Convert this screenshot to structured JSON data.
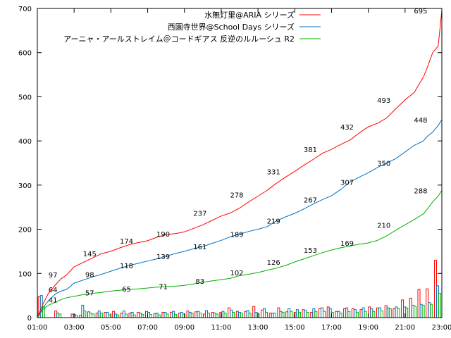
{
  "chart_data": {
    "type": "line",
    "x_axis": {
      "min": 1,
      "max": 23,
      "ticks": [
        {
          "value": 1,
          "label": "01:00"
        },
        {
          "value": 3,
          "label": "03:00"
        },
        {
          "value": 5,
          "label": "05:00"
        },
        {
          "value": 7,
          "label": "07:00"
        },
        {
          "value": 9,
          "label": "09:00"
        },
        {
          "value": 11,
          "label": "11:00"
        },
        {
          "value": 13,
          "label": "13:00"
        },
        {
          "value": 15,
          "label": "15:00"
        },
        {
          "value": 17,
          "label": "17:00"
        },
        {
          "value": 19,
          "label": "19:00"
        },
        {
          "value": 21,
          "label": "21:00"
        },
        {
          "value": 23,
          "label": "23:00"
        }
      ]
    },
    "y_axis": {
      "min": 0,
      "max": 700,
      "ticks": [
        0,
        100,
        200,
        300,
        400,
        500,
        600,
        700
      ]
    },
    "grid": false,
    "legend_position": "top-right",
    "series": [
      {
        "name": "水無灯里@ARIA シリーズ",
        "color": "#ff0000",
        "cumulative": {
          "x": [
            1,
            1.3,
            1.6,
            2,
            2.3,
            2.6,
            3,
            3.5,
            4,
            4.5,
            5,
            5.5,
            6,
            6.5,
            7,
            7.5,
            8,
            8.5,
            9,
            9.5,
            10,
            10.5,
            11,
            11.5,
            12,
            12.5,
            13,
            13.5,
            14,
            14.5,
            15,
            15.5,
            16,
            16.5,
            17,
            17.5,
            18,
            18.5,
            19,
            19.5,
            20,
            20.5,
            21,
            21.5,
            22,
            22.2,
            22.5,
            22.8,
            23
          ],
          "y": [
            0,
            30,
            55,
            75,
            88,
            97,
            115,
            125,
            135,
            145,
            150,
            158,
            165,
            170,
            174,
            182,
            188,
            190,
            194,
            202,
            210,
            220,
            230,
            237,
            248,
            262,
            275,
            288,
            304,
            318,
            331,
            345,
            358,
            372,
            381,
            392,
            402,
            418,
            432,
            440,
            452,
            473,
            493,
            510,
            545,
            565,
            600,
            615,
            695
          ]
        },
        "labels": [
          {
            "x": 2,
            "value": 97
          },
          {
            "x": 4,
            "value": 145
          },
          {
            "x": 6,
            "value": 174
          },
          {
            "x": 8,
            "value": 190
          },
          {
            "x": 10,
            "value": 237
          },
          {
            "x": 12,
            "value": 278
          },
          {
            "x": 14,
            "value": 331
          },
          {
            "x": 16,
            "value": 381
          },
          {
            "x": 18,
            "value": 432
          },
          {
            "x": 20,
            "value": 493
          },
          {
            "x": 22,
            "value": 695
          }
        ],
        "bars": [
          47,
          0,
          15,
          0,
          8,
          5,
          13,
          10,
          12,
          14,
          10,
          10,
          12,
          14,
          9,
          12,
          12,
          10,
          15,
          13,
          8,
          12,
          12,
          22,
          14,
          14,
          25,
          17,
          10,
          22,
          13,
          12,
          18,
          12,
          20,
          24,
          14,
          20,
          20,
          18,
          24,
          22,
          27,
          20,
          40,
          44,
          64,
          65,
          130
        ]
      },
      {
        "name": "西園寺世界@School Days シリーズ",
        "color": "#0070c0",
        "cumulative": {
          "x": [
            1,
            1.3,
            1.6,
            2,
            2.3,
            2.6,
            3,
            3.5,
            4,
            4.5,
            5,
            5.5,
            6,
            6.5,
            7,
            7.5,
            8,
            8.5,
            9,
            9.5,
            10,
            10.5,
            11,
            11.5,
            12,
            12.5,
            13,
            13.5,
            14,
            14.5,
            15,
            15.5,
            16,
            16.5,
            17,
            17.5,
            18,
            18.5,
            19,
            19.5,
            20,
            20.5,
            21,
            21.5,
            22,
            22.2,
            22.5,
            22.8,
            23
          ],
          "y": [
            0,
            22,
            38,
            54,
            60,
            64,
            78,
            85,
            92,
            98,
            105,
            112,
            118,
            123,
            128,
            133,
            139,
            145,
            150,
            156,
            161,
            168,
            175,
            183,
            189,
            195,
            200,
            206,
            219,
            228,
            236,
            246,
            257,
            267,
            276,
            290,
            307,
            318,
            328,
            340,
            350,
            360,
            375,
            390,
            400,
            410,
            420,
            435,
            448
          ]
        },
        "labels": [
          {
            "x": 2,
            "value": 64
          },
          {
            "x": 4,
            "value": 98
          },
          {
            "x": 6,
            "value": 118
          },
          {
            "x": 8,
            "value": 139
          },
          {
            "x": 10,
            "value": 161
          },
          {
            "x": 12,
            "value": 189
          },
          {
            "x": 14,
            "value": 219
          },
          {
            "x": 16,
            "value": 267
          },
          {
            "x": 18,
            "value": 307
          },
          {
            "x": 20,
            "value": 350
          },
          {
            "x": 22,
            "value": 448
          }
        ],
        "bars": [
          50,
          0,
          10,
          0,
          7,
          28,
          10,
          15,
          12,
          8,
          15,
          12,
          10,
          12,
          10,
          12,
          14,
          12,
          12,
          14,
          16,
          10,
          14,
          17,
          12,
          16,
          12,
          20,
          10,
          14,
          20,
          18,
          16,
          20,
          22,
          20,
          14,
          22,
          18,
          22,
          20,
          22,
          22,
          24,
          24,
          28,
          30,
          34,
          72
        ]
      },
      {
        "name": "アーニャ・アールストレイム＠コードギアス 反逆のルルーシュ R2",
        "color": "#00b000",
        "cumulative": {
          "x": [
            1,
            1.3,
            1.6,
            2,
            2.3,
            2.6,
            3,
            3.5,
            4,
            4.5,
            5,
            5.5,
            6,
            6.5,
            7,
            7.5,
            8,
            8.5,
            9,
            9.5,
            10,
            10.5,
            11,
            11.5,
            12,
            12.5,
            13,
            13.5,
            14,
            14.5,
            15,
            15.5,
            16,
            16.5,
            17,
            17.5,
            18,
            18.5,
            19,
            19.5,
            20,
            20.5,
            21,
            21.5,
            22,
            22.2,
            22.5,
            22.8,
            23
          ],
          "y": [
            0,
            18,
            28,
            35,
            41,
            45,
            48,
            52,
            55,
            57,
            60,
            62,
            64,
            65,
            67,
            69,
            70,
            71,
            73,
            76,
            80,
            83,
            86,
            89,
            95,
            98,
            102,
            107,
            112,
            118,
            126,
            133,
            140,
            147,
            153,
            158,
            162,
            166,
            169,
            175,
            185,
            198,
            210,
            222,
            235,
            245,
            262,
            275,
            288
          ]
        },
        "labels": [
          {
            "x": 2,
            "value": 41
          },
          {
            "x": 4,
            "value": 57
          },
          {
            "x": 6,
            "value": 65
          },
          {
            "x": 8,
            "value": 71
          },
          {
            "x": 10,
            "value": 83
          },
          {
            "x": 12,
            "value": 102
          },
          {
            "x": 14,
            "value": 126
          },
          {
            "x": 16,
            "value": 153
          },
          {
            "x": 18,
            "value": 169
          },
          {
            "x": 20,
            "value": 210
          },
          {
            "x": 22,
            "value": 288
          }
        ],
        "bars": [
          25,
          0,
          8,
          0,
          5,
          15,
          8,
          10,
          6,
          6,
          8,
          6,
          7,
          7,
          6,
          8,
          7,
          8,
          10,
          10,
          10,
          8,
          10,
          12,
          10,
          10,
          10,
          12,
          10,
          12,
          14,
          12,
          12,
          14,
          14,
          12,
          10,
          14,
          12,
          14,
          14,
          15,
          20,
          20,
          22,
          26,
          28,
          30,
          55
        ]
      }
    ]
  }
}
